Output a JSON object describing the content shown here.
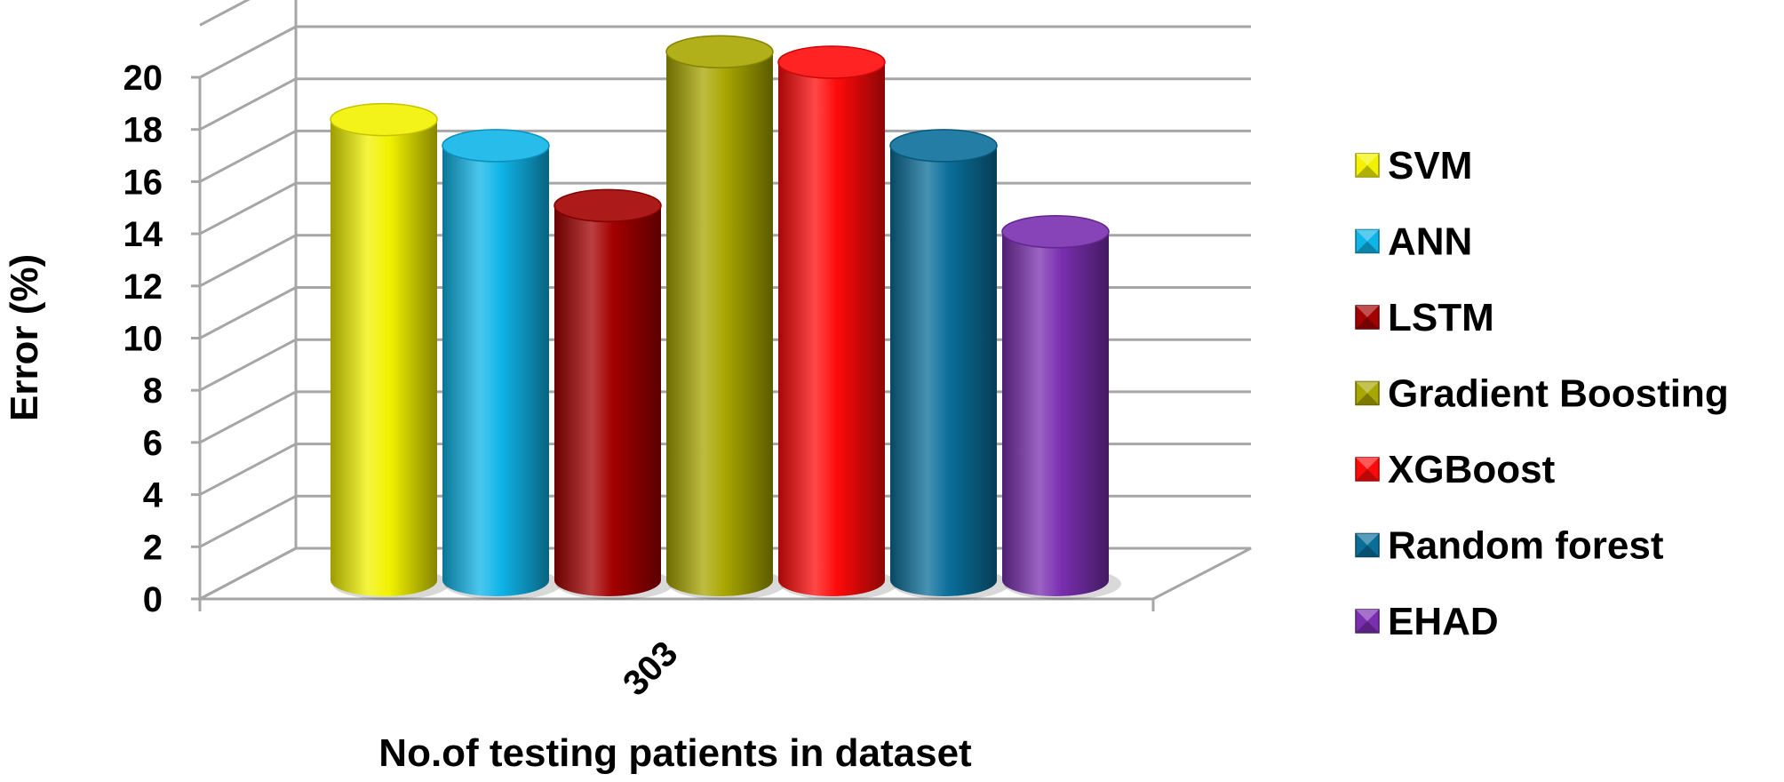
{
  "chart_data": {
    "type": "bar",
    "categories": [
      "303"
    ],
    "series": [
      {
        "name": "SVM",
        "values": [
          17.8
        ],
        "color": "#f2f200"
      },
      {
        "name": "ANN",
        "values": [
          16.8
        ],
        "color": "#0fb4e8"
      },
      {
        "name": "LSTM",
        "values": [
          14.5
        ],
        "color": "#a30000"
      },
      {
        "name": "Gradient Boosting",
        "values": [
          20.4
        ],
        "color": "#a8a600"
      },
      {
        "name": "XGBoost",
        "values": [
          20.0
        ],
        "color": "#ff0a0a"
      },
      {
        "name": "Random forest",
        "values": [
          16.8
        ],
        "color": "#0a6e9a"
      },
      {
        "name": "EHAD",
        "values": [
          13.5
        ],
        "color": "#7a2fb0"
      }
    ],
    "xlabel": "No.of testing patients in dataset",
    "ylabel": "Error  (%)",
    "ylim": [
      0,
      20
    ],
    "yticks": [
      "0",
      "2",
      "4",
      "6",
      "8",
      "10",
      "12",
      "14",
      "16",
      "18",
      "20"
    ],
    "grid": true,
    "legend_position": "right",
    "style": "3d-cylinder"
  }
}
